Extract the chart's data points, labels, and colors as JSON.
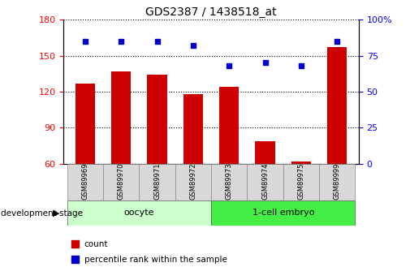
{
  "title": "GDS2387 / 1438518_at",
  "samples": [
    "GSM89969",
    "GSM89970",
    "GSM89971",
    "GSM89972",
    "GSM89973",
    "GSM89974",
    "GSM89975",
    "GSM89999"
  ],
  "count_values": [
    127,
    137,
    134,
    118,
    124,
    79,
    62,
    157
  ],
  "percentile_values": [
    85,
    85,
    85,
    82,
    68,
    70,
    68,
    85
  ],
  "bar_color": "#cc0000",
  "dot_color": "#0000cc",
  "ylim_left": [
    60,
    180
  ],
  "ylim_right": [
    0,
    100
  ],
  "yticks_left": [
    60,
    90,
    120,
    150,
    180
  ],
  "yticks_right": [
    0,
    25,
    50,
    75,
    100
  ],
  "ytick_labels_right": [
    "0",
    "25",
    "50",
    "75",
    "100%"
  ],
  "groups": [
    {
      "label": "oocyte",
      "indices": [
        0,
        1,
        2,
        3
      ],
      "color": "#ccffcc"
    },
    {
      "label": "1-cell embryo",
      "indices": [
        4,
        5,
        6,
        7
      ],
      "color": "#44ee44"
    }
  ],
  "group_label_prefix": "development stage",
  "legend_count_label": "count",
  "legend_percentile_label": "percentile rank within the sample",
  "bar_bottom": 60,
  "bar_width": 0.55,
  "x_positions": [
    0,
    1,
    2,
    3,
    4,
    5,
    6,
    7
  ]
}
